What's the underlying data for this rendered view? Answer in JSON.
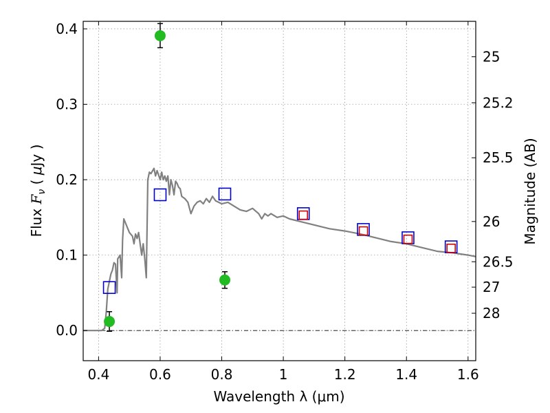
{
  "chart_data": {
    "type": "scatter",
    "xlabel": "Wavelength  λ (μm)",
    "ylabel": "Flux  F_ν  ( μJy )",
    "ylabel_parts": {
      "pre": "Flux  ",
      "F": "F",
      "nu": "ν",
      "mid": "  ( ",
      "mu": "μ",
      "post": "Jy )"
    },
    "y2label": "Magnitude (AB)",
    "xlim": [
      0.35,
      1.625
    ],
    "ylim": [
      -0.04,
      0.41
    ],
    "grid": true,
    "x_ticks": [
      {
        "v": 0.4,
        "label": "0.4"
      },
      {
        "v": 0.6,
        "label": "0.6"
      },
      {
        "v": 0.8,
        "label": "0.8"
      },
      {
        "v": 1.0,
        "label": "1"
      },
      {
        "v": 1.2,
        "label": "1.2"
      },
      {
        "v": 1.4,
        "label": "1.4"
      },
      {
        "v": 1.6,
        "label": "1.6"
      }
    ],
    "y_ticks": [
      {
        "v": 0.0,
        "label": "0.0"
      },
      {
        "v": 0.1,
        "label": "0.1"
      },
      {
        "v": 0.2,
        "label": "0.2"
      },
      {
        "v": 0.3,
        "label": "0.3"
      },
      {
        "v": 0.4,
        "label": "0.4"
      }
    ],
    "y2_ticks": [
      {
        "mag": 25,
        "label": "25"
      },
      {
        "mag": 25.2,
        "label": "25.2"
      },
      {
        "mag": 25.5,
        "label": "25.5"
      },
      {
        "mag": 26,
        "label": "26"
      },
      {
        "mag": 26.5,
        "label": "26.5"
      },
      {
        "mag": 27,
        "label": "27"
      },
      {
        "mag": 28,
        "label": "28"
      }
    ],
    "series": [
      {
        "kind": "line",
        "color": "#808080",
        "x": [
          0.35,
          0.41,
          0.42,
          0.425,
          0.43,
          0.44,
          0.445,
          0.45,
          0.455,
          0.46,
          0.462,
          0.47,
          0.475,
          0.478,
          0.482,
          0.49,
          0.5,
          0.51,
          0.515,
          0.52,
          0.525,
          0.53,
          0.54,
          0.545,
          0.55,
          0.555,
          0.56,
          0.565,
          0.57,
          0.58,
          0.585,
          0.59,
          0.6,
          0.605,
          0.61,
          0.615,
          0.62,
          0.625,
          0.63,
          0.635,
          0.64,
          0.645,
          0.65,
          0.655,
          0.66,
          0.665,
          0.67,
          0.68,
          0.69,
          0.7,
          0.71,
          0.72,
          0.73,
          0.74,
          0.75,
          0.76,
          0.77,
          0.78,
          0.79,
          0.8,
          0.82,
          0.84,
          0.86,
          0.88,
          0.9,
          0.92,
          0.93,
          0.94,
          0.95,
          0.96,
          0.98,
          1.0,
          1.02,
          1.05,
          1.1,
          1.15,
          1.2,
          1.25,
          1.3,
          1.35,
          1.4,
          1.45,
          1.5,
          1.55,
          1.6,
          1.625
        ],
        "y": [
          0.0,
          0.0,
          0.003,
          0.025,
          0.055,
          0.075,
          0.08,
          0.09,
          0.088,
          0.05,
          0.095,
          0.1,
          0.07,
          0.12,
          0.148,
          0.14,
          0.13,
          0.125,
          0.115,
          0.128,
          0.122,
          0.13,
          0.1,
          0.115,
          0.095,
          0.07,
          0.2,
          0.21,
          0.208,
          0.215,
          0.205,
          0.212,
          0.2,
          0.21,
          0.2,
          0.205,
          0.198,
          0.205,
          0.18,
          0.2,
          0.192,
          0.18,
          0.198,
          0.195,
          0.19,
          0.188,
          0.178,
          0.175,
          0.17,
          0.155,
          0.165,
          0.17,
          0.172,
          0.168,
          0.175,
          0.17,
          0.178,
          0.172,
          0.17,
          0.168,
          0.17,
          0.165,
          0.16,
          0.158,
          0.162,
          0.155,
          0.148,
          0.155,
          0.152,
          0.155,
          0.15,
          0.152,
          0.148,
          0.145,
          0.14,
          0.135,
          0.132,
          0.128,
          0.123,
          0.118,
          0.115,
          0.11,
          0.105,
          0.103,
          0.1,
          0.098
        ]
      },
      {
        "kind": "open-square",
        "color": "#0000cc",
        "x": [
          0.435,
          0.6,
          0.81,
          1.065,
          1.26,
          1.405,
          1.545
        ],
        "y": [
          0.057,
          0.18,
          0.181,
          0.155,
          0.134,
          0.123,
          0.111
        ]
      },
      {
        "kind": "open-square-small",
        "color": "#cc0000",
        "x": [
          1.065,
          1.26,
          1.405,
          1.545
        ],
        "y": [
          0.153,
          0.132,
          0.121,
          0.109
        ]
      },
      {
        "kind": "point-errorbar",
        "color": "#22bb22",
        "x": [
          0.435,
          0.6,
          0.81
        ],
        "y": [
          0.012,
          0.391,
          0.067
        ],
        "yerr": [
          0.013,
          0.016,
          0.011
        ]
      }
    ]
  }
}
